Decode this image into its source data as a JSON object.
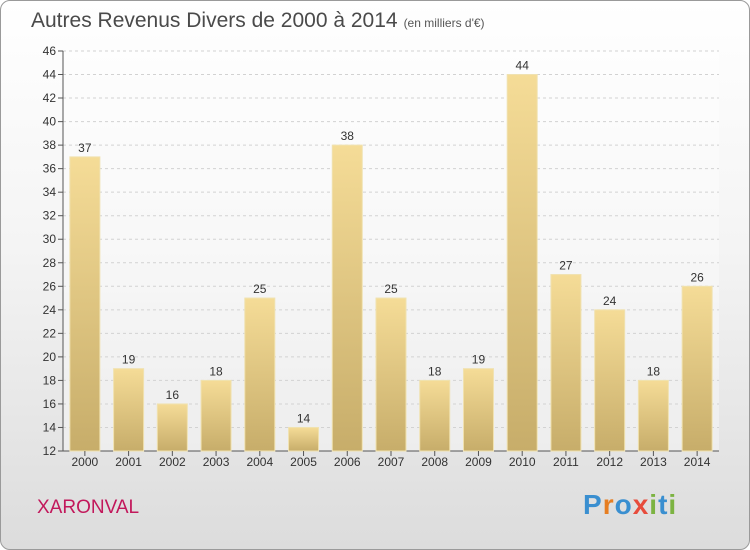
{
  "title": "Autres Revenus Divers de 2000 à 2014",
  "subtitle": "(en milliers d'€)",
  "location": "XARONVAL",
  "logo": {
    "text": "Proxiti",
    "letters": [
      "P",
      "r",
      "o",
      "x",
      "i",
      "t",
      "i"
    ]
  },
  "colors": {
    "bar_top": "#f5dc97",
    "bar_bottom": "#c7ad6a",
    "location": "#c2185b",
    "logo": [
      "#3a8fd0",
      "#e67e22",
      "#3a8fd0",
      "#e74c3c",
      "#7cb342",
      "#3a8fd0",
      "#7cb342"
    ]
  },
  "chart_data": {
    "type": "bar",
    "title": "Autres Revenus Divers de 2000 à 2014",
    "categories": [
      "2000",
      "2001",
      "2002",
      "2003",
      "2004",
      "2005",
      "2006",
      "2007",
      "2008",
      "2009",
      "2010",
      "2011",
      "2012",
      "2013",
      "2014"
    ],
    "values": [
      37,
      19,
      16,
      18,
      25,
      14,
      38,
      25,
      18,
      19,
      44,
      27,
      24,
      18,
      26
    ],
    "ylim": [
      12,
      46
    ],
    "yticks": [
      12,
      14,
      16,
      18,
      20,
      22,
      24,
      26,
      28,
      30,
      32,
      34,
      36,
      38,
      40,
      42,
      44,
      46
    ],
    "grid": true,
    "xlabel": "",
    "ylabel": ""
  }
}
